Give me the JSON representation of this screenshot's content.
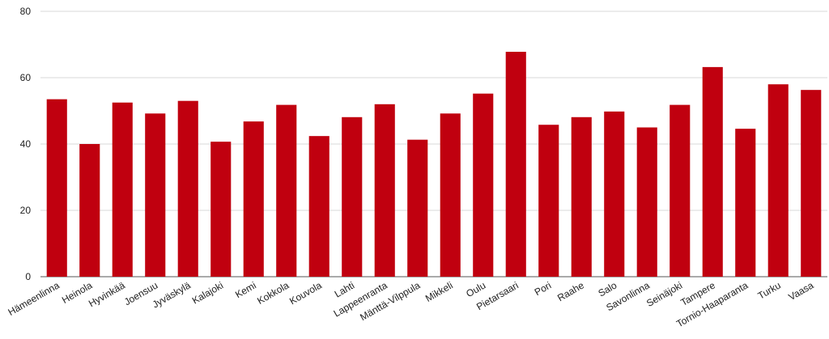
{
  "chart_data": {
    "type": "bar",
    "categories": [
      "Hämeenlinna",
      "Heinola",
      "Hyvinkää",
      "Joensuu",
      "Jyväskylä",
      "Kalajoki",
      "Kemi",
      "Kokkola",
      "Kouvola",
      "Lahti",
      "Lappeenranta",
      "Mänttä-Vilppula",
      "Mikkeli",
      "Oulu",
      "Pietarsaari",
      "Pori",
      "Raahe",
      "Salo",
      "Savonlinna",
      "Seinäjoki",
      "Tampere",
      "Tornio-Haaparanta",
      "Turku",
      "Vaasa"
    ],
    "values": [
      53.5,
      40,
      52.5,
      49.2,
      53,
      40.7,
      46.8,
      51.8,
      42.4,
      48.1,
      52,
      41.3,
      49.2,
      55.2,
      67.8,
      45.8,
      48.1,
      49.8,
      45,
      51.8,
      63.2,
      44.6,
      58,
      56.3
    ],
    "ylim": [
      0,
      80
    ],
    "yticks": [
      0,
      20,
      40,
      60,
      80
    ],
    "bar_color": "#c0000f",
    "grid_color": "#d9d9d9",
    "grid": true,
    "legend": "none"
  }
}
